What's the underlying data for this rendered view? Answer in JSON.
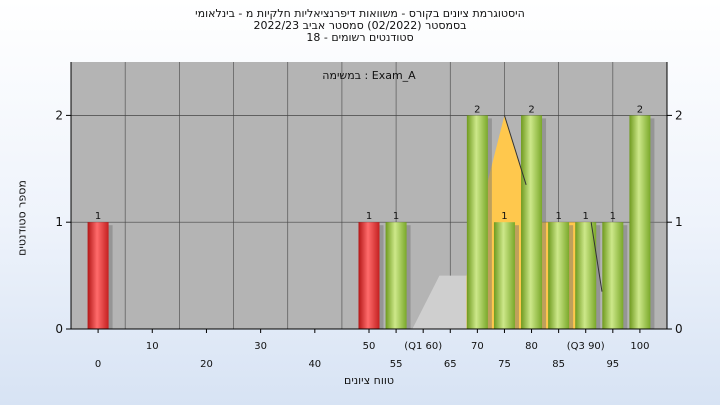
{
  "header": {
    "title_line1": "היסטוגרמת ציונים בקורס - משוואות דיפרנציאליות חלקיות מ - בינלאומי",
    "title_line2": "בסמסטר (02/2022)  סמסטר אביב 2022/23",
    "title_line3": "סטודנטים רשומים - 18"
  },
  "chart_data": {
    "type": "bar",
    "legend_text": "במשימה : Exam_A",
    "ylabel": "מספר סטודנטים",
    "xlabel": "טווח ציונים",
    "ylim": [
      0,
      2.5
    ],
    "xlim": [
      -5,
      105
    ],
    "yticks": [
      0,
      1,
      2
    ],
    "xtick_labels": [
      {
        "x": 0,
        "text": "0",
        "row": 2
      },
      {
        "x": 10,
        "text": "10",
        "row": 1
      },
      {
        "x": 20,
        "text": "20",
        "row": 2
      },
      {
        "x": 30,
        "text": "30",
        "row": 1
      },
      {
        "x": 40,
        "text": "40",
        "row": 2
      },
      {
        "x": 50,
        "text": "50",
        "row": 1
      },
      {
        "x": 55,
        "text": "55",
        "row": 2
      },
      {
        "x": 60,
        "text": "(Q1 60)",
        "row": 1
      },
      {
        "x": 65,
        "text": "65",
        "row": 2
      },
      {
        "x": 70,
        "text": "70",
        "row": 1
      },
      {
        "x": 75,
        "text": "75",
        "row": 2
      },
      {
        "x": 80,
        "text": "80",
        "row": 1
      },
      {
        "x": 85,
        "text": "85",
        "row": 2
      },
      {
        "x": 90,
        "text": "(Q3 90)",
        "row": 1
      },
      {
        "x": 95,
        "text": "95",
        "row": 2
      },
      {
        "x": 100,
        "text": "100",
        "row": 1
      }
    ],
    "bars": [
      {
        "x": 0,
        "value": 1,
        "label": "1",
        "status": "fail"
      },
      {
        "x": 50,
        "value": 1,
        "label": "1",
        "status": "fail"
      },
      {
        "x": 55,
        "value": 1,
        "label": "1",
        "status": "pass"
      },
      {
        "x": 70,
        "value": 2,
        "label": "2",
        "status": "pass"
      },
      {
        "x": 75,
        "value": 1,
        "label": "1",
        "status": "pass"
      },
      {
        "x": 80,
        "value": 2,
        "label": "2",
        "status": "pass"
      },
      {
        "x": 85,
        "value": 1,
        "label": "1",
        "status": "pass"
      },
      {
        "x": 90,
        "value": 1,
        "label": "1",
        "status": "pass"
      },
      {
        "x": 95,
        "value": 1,
        "label": "1",
        "status": "pass"
      },
      {
        "x": 100,
        "value": 2,
        "label": "2",
        "status": "pass"
      }
    ],
    "gray_area": [
      [
        58,
        0
      ],
      [
        63,
        0.5
      ],
      [
        68,
        0.5
      ],
      [
        68,
        0
      ]
    ],
    "orange_area": [
      [
        68,
        0
      ],
      [
        68,
        0.5
      ],
      [
        71,
        1
      ],
      [
        72,
        1.4
      ],
      [
        75,
        2
      ],
      [
        79,
        1.35
      ],
      [
        79,
        1
      ],
      [
        91,
        1
      ],
      [
        91,
        0
      ]
    ],
    "lines": [
      [
        [
          75,
          2
        ],
        [
          79,
          1.35
        ]
      ],
      [
        [
          91,
          1
        ],
        [
          93,
          0.35
        ]
      ]
    ],
    "colors": {
      "plot_bg": "#b4b4b4",
      "fail": "#e83b3b",
      "pass": "#9ac43e",
      "area_orange": "#ffc84d",
      "area_gray": "#cfcfcf"
    }
  }
}
